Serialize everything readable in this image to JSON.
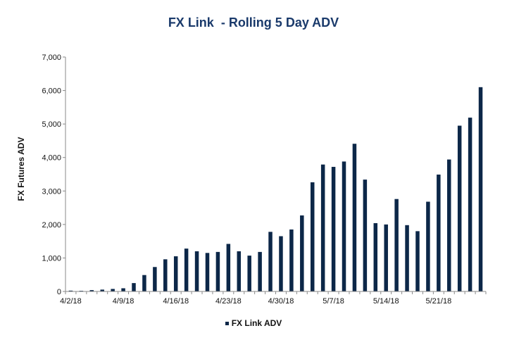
{
  "chart_data": {
    "type": "bar",
    "title": "FX Link  - Rolling 5 Day ADV",
    "ylabel": "FX Futures ADV",
    "xlabel": "",
    "ylim": [
      0,
      7000
    ],
    "yticks": [
      "0",
      "1,000",
      "2,000",
      "3,000",
      "4,000",
      "5,000",
      "6,000",
      "7,000"
    ],
    "grid": false,
    "legend_position": "bottom",
    "bar_color": "#0c2748",
    "x_tick_labels": [
      "4/2/18",
      "4/9/18",
      "4/16/18",
      "4/23/18",
      "4/30/18",
      "5/7/18",
      "5/14/18",
      "5/21/18"
    ],
    "series": [
      {
        "name": "FX Link ADV",
        "values": [
          25,
          20,
          40,
          55,
          75,
          95,
          250,
          490,
          730,
          960,
          1050,
          1280,
          1200,
          1150,
          1180,
          1420,
          1200,
          1070,
          1180,
          1780,
          1650,
          1850,
          2270,
          3260,
          3790,
          3720,
          3880,
          4410,
          3340,
          2040,
          2000,
          2760,
          1980,
          1800,
          2680,
          3490,
          3940,
          4950,
          5190,
          6100
        ]
      }
    ]
  }
}
